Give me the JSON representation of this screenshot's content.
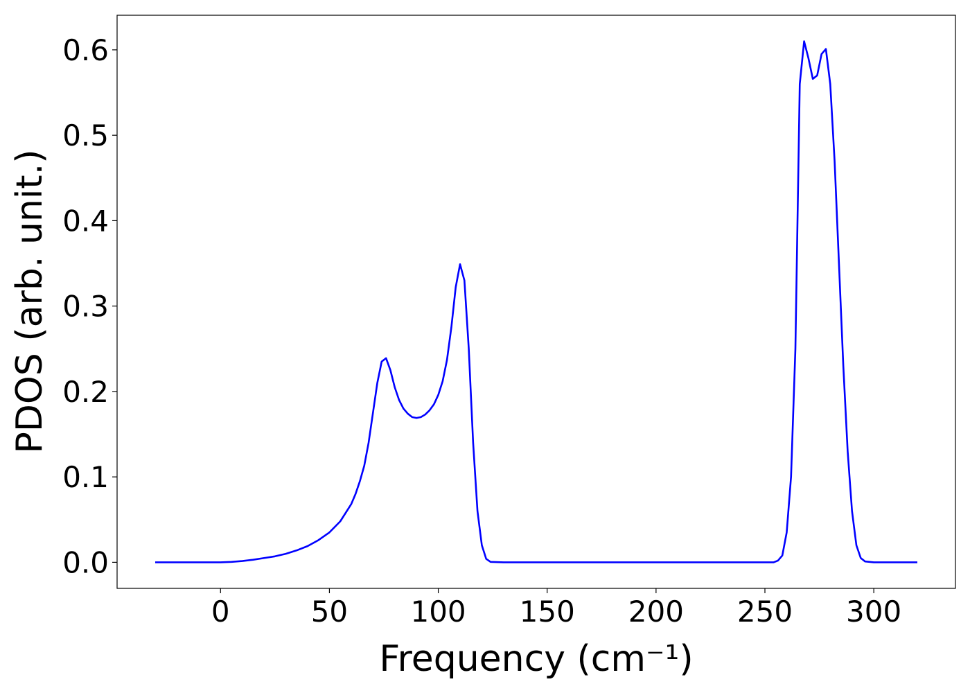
{
  "chart_data": {
    "type": "line",
    "xlabel": "Frequency (cm⁻¹)",
    "ylabel": "PDOS (arb. unit.)",
    "xlim": [
      -47.5,
      337.5
    ],
    "ylim": [
      -0.0305,
      0.6405
    ],
    "xticks": [
      0,
      50,
      100,
      150,
      200,
      250,
      300
    ],
    "yticks": [
      {
        "value": 0,
        "label": "0.0"
      },
      0.1,
      0.2,
      0.3,
      0.4,
      0.5,
      0.6
    ],
    "series": [
      {
        "color": "#0000ff",
        "x": [
          -30,
          -20,
          -10,
          0,
          5,
          10,
          15,
          20,
          25,
          30,
          35,
          40,
          45,
          50,
          55,
          60,
          62,
          64,
          66,
          68,
          70,
          72,
          74,
          76,
          78,
          80,
          82,
          84,
          86,
          88,
          90,
          92,
          94,
          96,
          98,
          100,
          102,
          104,
          106,
          108,
          110,
          112,
          114,
          116,
          118,
          120,
          122,
          124,
          130,
          150,
          200,
          250,
          254,
          256,
          258,
          260,
          262,
          264,
          266,
          268,
          270,
          272,
          274,
          276,
          278,
          280,
          282,
          284,
          286,
          288,
          290,
          292,
          294,
          296,
          300,
          310,
          320
        ],
        "values": [
          0,
          0,
          0,
          0,
          0.0005,
          0.0015,
          0.003,
          0.005,
          0.007,
          0.01,
          0.014,
          0.019,
          0.026,
          0.035,
          0.048,
          0.068,
          0.08,
          0.095,
          0.113,
          0.14,
          0.175,
          0.21,
          0.235,
          0.239,
          0.225,
          0.205,
          0.19,
          0.18,
          0.174,
          0.17,
          0.169,
          0.17,
          0.173,
          0.178,
          0.185,
          0.196,
          0.212,
          0.237,
          0.275,
          0.322,
          0.349,
          0.33,
          0.25,
          0.14,
          0.06,
          0.02,
          0.004,
          0.0005,
          0,
          0,
          0,
          0,
          0,
          0.002,
          0.008,
          0.035,
          0.1,
          0.25,
          0.56,
          0.61,
          0.59,
          0.566,
          0.57,
          0.595,
          0.601,
          0.56,
          0.47,
          0.35,
          0.23,
          0.13,
          0.06,
          0.02,
          0.005,
          0.001,
          0,
          0,
          0
        ]
      }
    ]
  }
}
